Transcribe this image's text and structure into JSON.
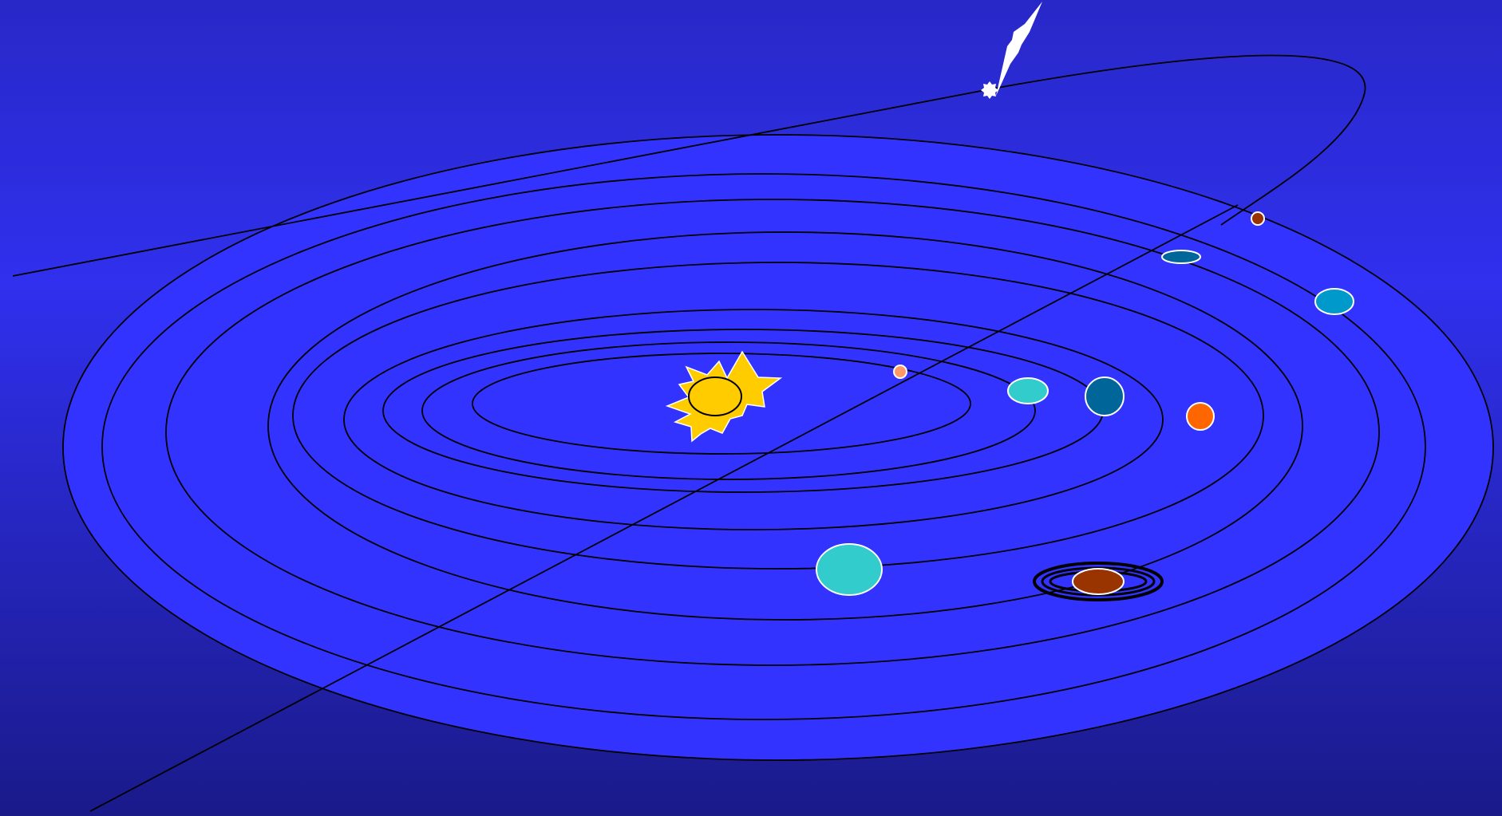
{
  "colors": {
    "background_top": "#2828c8",
    "background_mid": "#3030ee",
    "background_bottom": "#1a1a8a",
    "plane": "#3333ff",
    "orbit_line": "#000000",
    "sun_corona": "#ffcc00",
    "sun_core": "#ffcc00",
    "comet": "#ffffff"
  },
  "scene": {
    "sun": {
      "icon": "sun-icon"
    },
    "comet": {
      "icon": "comet-icon"
    },
    "orbit_count": 9,
    "planets": [
      {
        "name": "mercury-icon",
        "color": "#ff9966"
      },
      {
        "name": "venus-icon",
        "color": "#33cccc"
      },
      {
        "name": "earth-icon",
        "color": "#006699"
      },
      {
        "name": "mars-icon",
        "color": "#ff6600"
      },
      {
        "name": "jupiter-icon",
        "color": "#33cccc"
      },
      {
        "name": "saturn-icon",
        "color": "#993300"
      },
      {
        "name": "uranus-icon",
        "color": "#006699"
      },
      {
        "name": "neptune-icon",
        "color": "#0099cc"
      },
      {
        "name": "pluto-icon",
        "color": "#993300"
      }
    ]
  }
}
